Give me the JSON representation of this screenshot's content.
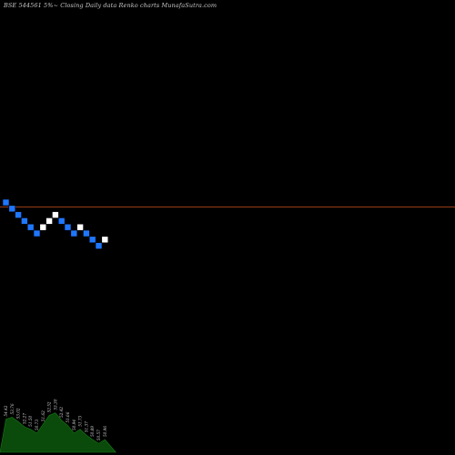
{
  "colors": {
    "background": "#000000",
    "up_brick": "#ffffff",
    "down_brick": "#1f77ff",
    "brick_stroke": "#000000",
    "last_price_line": "#a0401a",
    "volume_fill": "#0a4a0a",
    "volume_stroke": "#1a7a1a",
    "volume_label": "#d0d0d0",
    "title": "#c8c8c8"
  },
  "chart_data": {
    "type": "renko",
    "title": "BSE 544561 5%~  Closing Daily data  Renko  charts MunafaSutra.com",
    "last_price_level": 0.72,
    "grid": false,
    "bricks": [
      {
        "col": 0,
        "level": 0,
        "dir": "down"
      },
      {
        "col": 1,
        "level": 1,
        "dir": "down"
      },
      {
        "col": 2,
        "level": 2,
        "dir": "down"
      },
      {
        "col": 3,
        "level": 3,
        "dir": "down"
      },
      {
        "col": 4,
        "level": 4,
        "dir": "down"
      },
      {
        "col": 5,
        "level": 5,
        "dir": "down"
      },
      {
        "col": 6,
        "level": 4,
        "dir": "up"
      },
      {
        "col": 7,
        "level": 3,
        "dir": "up"
      },
      {
        "col": 8,
        "level": 2,
        "dir": "up"
      },
      {
        "col": 9,
        "level": 3,
        "dir": "down"
      },
      {
        "col": 10,
        "level": 4,
        "dir": "down"
      },
      {
        "col": 11,
        "level": 5,
        "dir": "down"
      },
      {
        "col": 12,
        "level": 4,
        "dir": "up"
      },
      {
        "col": 13,
        "level": 5,
        "dir": "down"
      },
      {
        "col": 14,
        "level": 6,
        "dir": "down"
      },
      {
        "col": 15,
        "level": 7,
        "dir": "down"
      },
      {
        "col": 16,
        "level": 6,
        "dir": "up"
      }
    ],
    "volume": {
      "values": [
        0.52,
        0.55,
        0.48,
        0.4,
        0.36,
        0.3,
        0.44,
        0.58,
        0.62,
        0.5,
        0.42,
        0.3,
        0.36,
        0.27,
        0.2,
        0.14,
        0.2
      ],
      "labels": [
        "54.42",
        "53.76",
        "53.02",
        "52.27",
        "51.50",
        "50.73",
        "51.62",
        "52.52",
        "53.30",
        "52.42",
        "51.66",
        "50.94",
        "51.73",
        "51.37",
        "50.89",
        "50.57",
        "50.96"
      ]
    }
  }
}
